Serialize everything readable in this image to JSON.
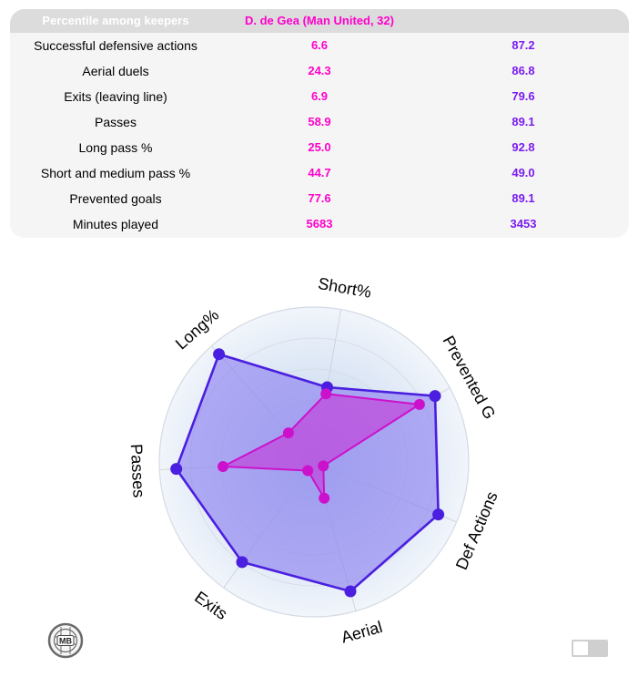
{
  "table": {
    "header": {
      "metric": "Percentile among keepers",
      "player1": "D. de Gea (Man United, 32)",
      "player2": ""
    },
    "rows": [
      {
        "metric": "Successful defensive actions",
        "p1": "6.6",
        "p2": "87.2"
      },
      {
        "metric": "Aerial duels",
        "p1": "24.3",
        "p2": "86.8"
      },
      {
        "metric": "Exits (leaving line)",
        "p1": "6.9",
        "p2": "79.6"
      },
      {
        "metric": "Passes",
        "p1": "58.9",
        "p2": "89.1"
      },
      {
        "metric": "Long pass %",
        "p1": "25.0",
        "p2": "92.8"
      },
      {
        "metric": "Short and medium pass %",
        "p1": "44.7",
        "p2": "49.0"
      },
      {
        "metric": "Prevented goals",
        "p1": "77.6",
        "p2": "89.1"
      },
      {
        "metric": "Minutes played",
        "p1": "5683",
        "p2": "3453"
      }
    ]
  },
  "chart_data": {
    "type": "radar",
    "axes": [
      "Def Actions",
      "Aerial",
      "Exits",
      "Passes",
      "Long%",
      "Short%",
      "Prevented G"
    ],
    "range": [
      0,
      100
    ],
    "grid": true,
    "series": [
      {
        "values": [
          87.2,
          86.8,
          79.6,
          89.1,
          92.8,
          49.0,
          89.1
        ],
        "color": "#4a1fe0",
        "fill": "#8a7ef0"
      },
      {
        "name": "D. de Gea (Man United, 32)",
        "values": [
          6.6,
          24.3,
          6.9,
          58.9,
          25.0,
          44.7,
          77.6
        ],
        "color": "#cc11cc",
        "fill": "#c046dc"
      }
    ]
  },
  "logo_text": "MB",
  "colors": {
    "player1": "#ff00cc",
    "player2": "#7a1cf0",
    "table_bg": "#f5f5f5",
    "header_bg": "#dcdcdc"
  }
}
